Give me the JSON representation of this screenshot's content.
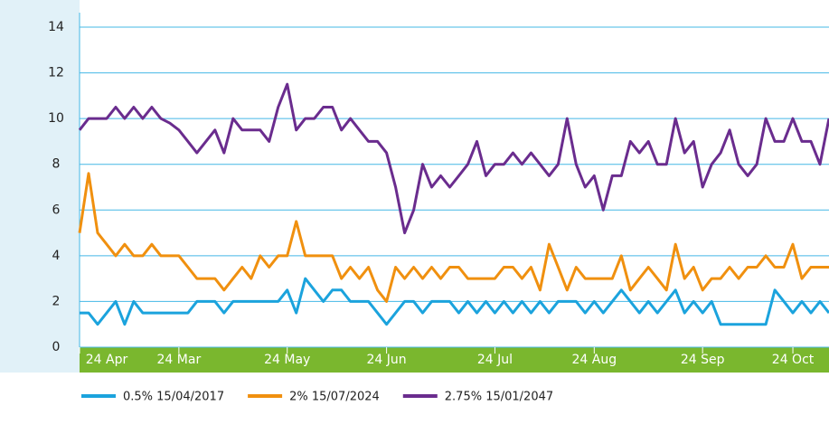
{
  "chart_data": {
    "type": "line",
    "x": [
      0,
      1,
      2,
      3,
      4,
      5,
      6,
      7,
      8,
      9,
      10,
      11,
      12,
      13,
      14,
      15,
      16,
      17,
      18,
      19,
      20,
      21,
      22,
      23,
      24,
      25,
      26,
      27,
      28,
      29,
      30,
      31,
      32,
      33,
      34,
      35,
      36,
      37,
      38,
      39,
      40,
      41,
      42,
      43,
      44,
      45,
      46,
      47,
      48,
      49,
      50,
      51,
      52,
      53,
      54,
      55,
      56,
      57,
      58,
      59,
      60,
      61,
      62,
      63,
      64,
      65,
      66,
      67,
      68,
      69,
      70,
      71,
      72,
      73,
      74,
      75,
      76,
      77,
      78,
      79,
      80,
      81,
      82,
      83
    ],
    "xlim": [
      0,
      83
    ],
    "xticks": [
      {
        "value": 0,
        "label": "24 Apr"
      },
      {
        "value": 11,
        "label": "24 Mar"
      },
      {
        "value": 23,
        "label": "24 May"
      },
      {
        "value": 34,
        "label": "24 Jun"
      },
      {
        "value": 46,
        "label": "24 Jul"
      },
      {
        "value": 57,
        "label": "24 Aug"
      },
      {
        "value": 69,
        "label": "24 Sep"
      },
      {
        "value": 79,
        "label": "24 Oct"
      }
    ],
    "ylim": [
      0,
      14
    ],
    "yticks": [
      0,
      2,
      4,
      6,
      8,
      10,
      12,
      14
    ],
    "grid": true,
    "series": [
      {
        "name": "0.5% 15/04/2017",
        "color": "#1ba3dd",
        "values": [
          1.5,
          1.5,
          1,
          1.5,
          2,
          1,
          2,
          1.5,
          1.5,
          1.5,
          1.5,
          1.5,
          1.5,
          2,
          2,
          2,
          1.5,
          2,
          2,
          2,
          2,
          2,
          2,
          2.5,
          1.5,
          3,
          2.5,
          2,
          2.5,
          2.5,
          2,
          2,
          2,
          1.5,
          1,
          1.5,
          2,
          2,
          1.5,
          2,
          2,
          2,
          1.5,
          2,
          1.5,
          2,
          1.5,
          2,
          1.5,
          2,
          1.5,
          2,
          1.5,
          2,
          2,
          2,
          1.5,
          2,
          1.5,
          2,
          2.5,
          2,
          1.5,
          2,
          1.5,
          2,
          2.5,
          1.5,
          2,
          1.5,
          2,
          1,
          1,
          1,
          1,
          1,
          1,
          2.5,
          2,
          1.5,
          2,
          1.5,
          2,
          1.5
        ]
      },
      {
        "name": "2% 15/07/2024",
        "color": "#f0900f",
        "values": [
          5,
          7.6,
          5,
          4.5,
          4,
          4.5,
          4,
          4,
          4.5,
          4,
          4,
          4,
          3.5,
          3,
          3,
          3,
          2.5,
          3,
          3.5,
          3,
          4,
          3.5,
          4,
          4,
          5.5,
          4,
          4,
          4,
          4,
          3,
          3.5,
          3,
          3.5,
          2.5,
          2,
          3.5,
          3,
          3.5,
          3,
          3.5,
          3,
          3.5,
          3.5,
          3,
          3,
          3,
          3,
          3.5,
          3.5,
          3,
          3.5,
          2.5,
          4.5,
          3.5,
          2.5,
          3.5,
          3,
          3,
          3,
          3,
          4,
          2.5,
          3,
          3.5,
          3,
          2.5,
          4.5,
          3,
          3.5,
          2.5,
          3,
          3,
          3.5,
          3,
          3.5,
          3.5,
          4,
          3.5,
          3.5,
          4.5,
          3,
          3.5,
          3.5,
          3.5
        ]
      },
      {
        "name": "2.75% 15/01/2047",
        "color": "#6a2c8e",
        "values": [
          9.5,
          10,
          10,
          10,
          10.5,
          10,
          10.5,
          10,
          10.5,
          10,
          9.8,
          9.5,
          9,
          8.5,
          9,
          9.5,
          8.5,
          10,
          9.5,
          9.5,
          9.5,
          9,
          10.5,
          11.5,
          9.5,
          10,
          10,
          10.5,
          10.5,
          9.5,
          10,
          9.5,
          9,
          9,
          8.5,
          7,
          5,
          6,
          8,
          7,
          7.5,
          7,
          7.5,
          8,
          9,
          7.5,
          8,
          8,
          8.5,
          8,
          8.5,
          8,
          7.5,
          8,
          10,
          8,
          7,
          7.5,
          6,
          7.5,
          7.5,
          9,
          8.5,
          9,
          8,
          8,
          10,
          8.5,
          9,
          7,
          8,
          8.5,
          9.5,
          8,
          7.5,
          8,
          10,
          9,
          9,
          10,
          9,
          9,
          8,
          10
        ]
      }
    ]
  }
}
